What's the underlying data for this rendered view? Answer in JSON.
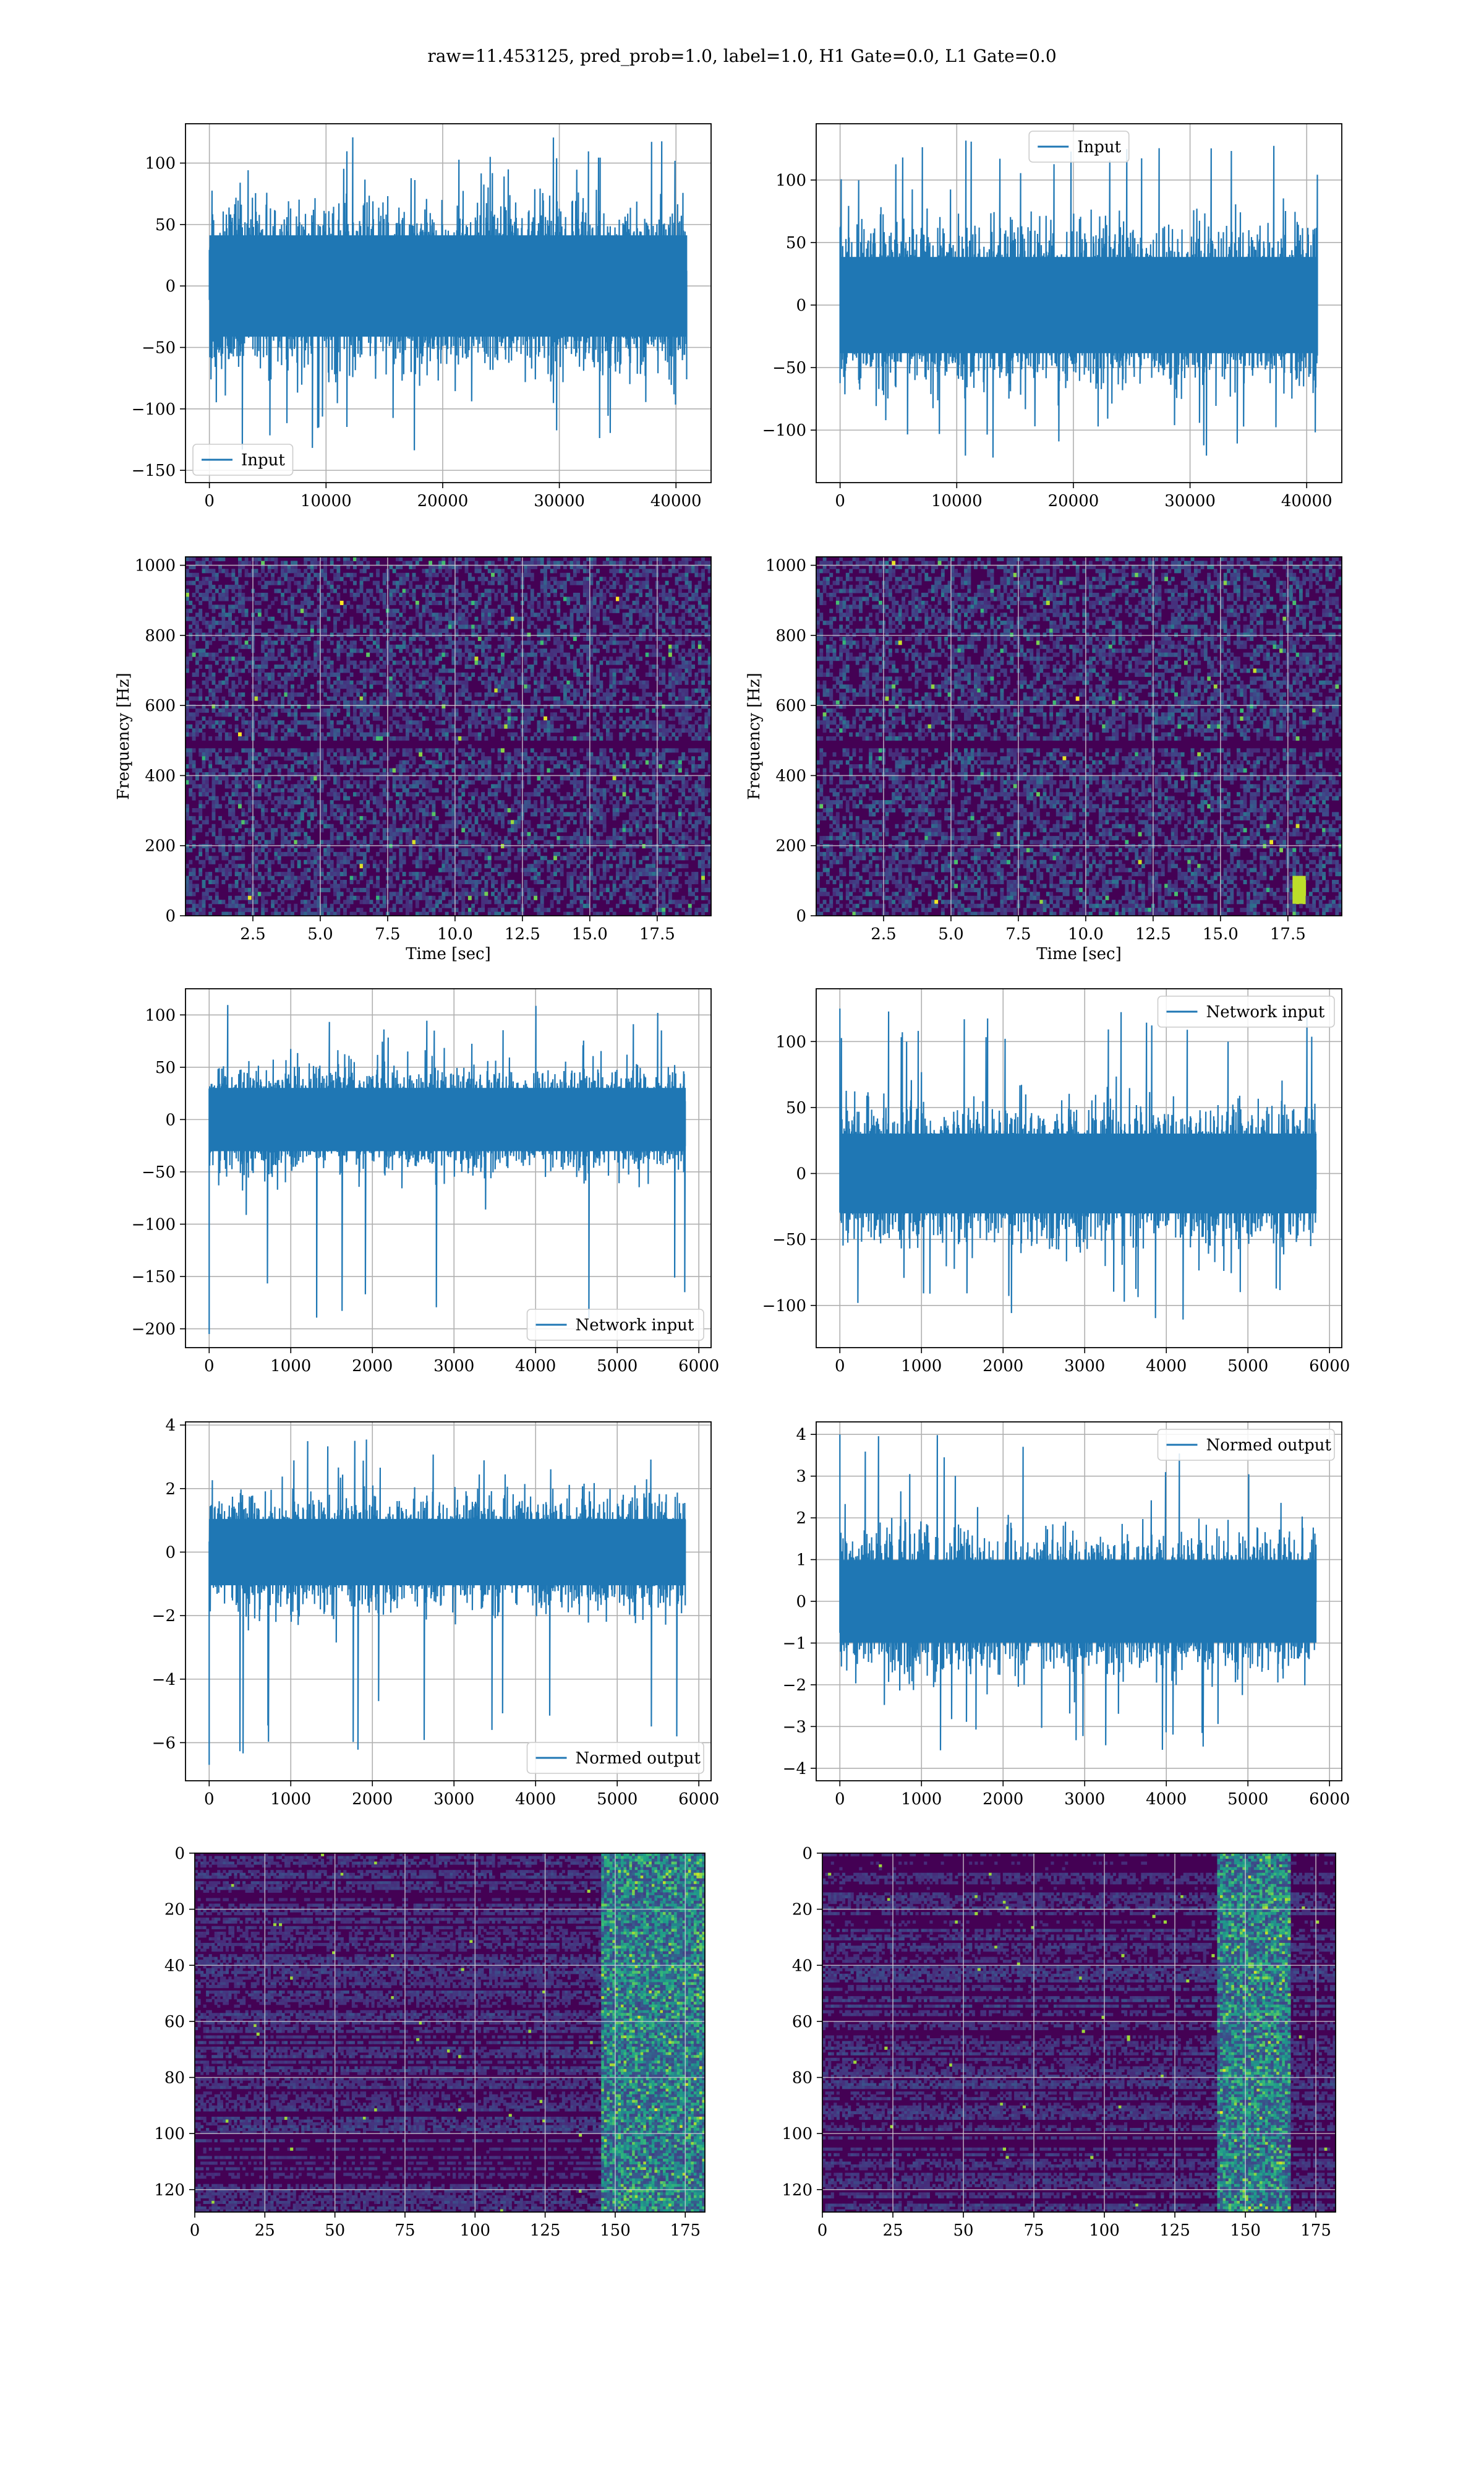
{
  "figure_title": "raw=11.453125, pred_prob=1.0, label=1.0, H1 Gate=0.0, L1 Gate=0.0",
  "colors": {
    "series": "#1f77b4",
    "grid": "#b0b0b0",
    "spectrogram_base": "#440154",
    "viridis": [
      "#440154",
      "#482878",
      "#3e4989",
      "#31688e",
      "#26828e",
      "#1f9e89",
      "#35b779",
      "#6ece58",
      "#b5de2b",
      "#fde725"
    ]
  },
  "chart_data": [
    {
      "id": "input-h1",
      "type": "line",
      "title": "",
      "xlabel": "",
      "ylabel": "",
      "xlim": [
        -2048,
        43008
      ],
      "ylim": [
        -160,
        132
      ],
      "xticks": [
        0,
        10000,
        20000,
        30000,
        40000
      ],
      "xticklabels": [
        "0",
        "10000",
        "20000",
        "30000",
        "40000"
      ],
      "yticks": [
        -150,
        -100,
        -50,
        0,
        50,
        100
      ],
      "yticklabels": [
        "−150",
        "−100",
        "−50",
        "0",
        "50",
        "100"
      ],
      "grid": true,
      "legend": {
        "position": "lower-left",
        "entries": [
          "Input"
        ]
      },
      "series": [
        {
          "name": "Input",
          "n": 40960,
          "typical_amplitude": 75,
          "min": -145,
          "max": 121
        }
      ]
    },
    {
      "id": "input-l1",
      "type": "line",
      "title": "",
      "xlabel": "",
      "ylabel": "",
      "xlim": [
        -2048,
        43008
      ],
      "ylim": [
        -142,
        145
      ],
      "xticks": [
        0,
        10000,
        20000,
        30000,
        40000
      ],
      "xticklabels": [
        "0",
        "10000",
        "20000",
        "30000",
        "40000"
      ],
      "yticks": [
        -100,
        -50,
        0,
        50,
        100
      ],
      "yticklabels": [
        "−100",
        "−50",
        "0",
        "50",
        "100"
      ],
      "grid": true,
      "legend": {
        "position": "upper-center",
        "entries": [
          "Input"
        ]
      },
      "series": [
        {
          "name": "Input",
          "n": 40960,
          "typical_amplitude": 70,
          "min": -130,
          "max": 132
        }
      ]
    },
    {
      "id": "spectrogram-h1",
      "type": "heatmap",
      "title": "",
      "xlabel": "Time [sec]",
      "ylabel": "Frequency [Hz]",
      "xlim": [
        0,
        19.5
      ],
      "ylim": [
        0,
        1024
      ],
      "xticks": [
        2.5,
        5,
        7.5,
        10,
        12.5,
        15,
        17.5
      ],
      "xticklabels": [
        "2.5",
        "5.0",
        "7.5",
        "10.0",
        "12.5",
        "15.0",
        "17.5"
      ],
      "yticks": [
        0,
        200,
        400,
        600,
        800,
        1000
      ],
      "yticklabels": [
        "0",
        "200",
        "400",
        "600",
        "800",
        "1000"
      ],
      "grid": true,
      "colormap": "viridis",
      "noise_level": "low-random",
      "dark_band_hz": 500
    },
    {
      "id": "spectrogram-l1",
      "type": "heatmap",
      "title": "",
      "xlabel": "Time [sec]",
      "ylabel": "Frequency [Hz]",
      "xlim": [
        0,
        19.5
      ],
      "ylim": [
        0,
        1024
      ],
      "xticks": [
        2.5,
        5,
        7.5,
        10,
        12.5,
        15,
        17.5
      ],
      "xticklabels": [
        "2.5",
        "5.0",
        "7.5",
        "10.0",
        "12.5",
        "15.0",
        "17.5"
      ],
      "yticks": [
        0,
        200,
        400,
        600,
        800,
        1000
      ],
      "yticklabels": [
        "0",
        "200",
        "400",
        "600",
        "800",
        "1000"
      ],
      "grid": true,
      "colormap": "viridis",
      "noise_level": "low-random",
      "dark_band_hz": 500,
      "bright_spot": {
        "t": 17.8,
        "f": 80
      }
    },
    {
      "id": "network-input-h1",
      "type": "line",
      "title": "",
      "xlabel": "",
      "ylabel": "",
      "xlim": [
        -290,
        6150
      ],
      "ylim": [
        -218,
        125
      ],
      "xticks": [
        0,
        1000,
        2000,
        3000,
        4000,
        5000,
        6000
      ],
      "xticklabels": [
        "0",
        "1000",
        "2000",
        "3000",
        "4000",
        "5000",
        "6000"
      ],
      "yticks": [
        -200,
        -150,
        -100,
        -50,
        0,
        50,
        100
      ],
      "yticklabels": [
        "−200",
        "−150",
        "−100",
        "−50",
        "0",
        "50",
        "100"
      ],
      "grid": true,
      "legend": {
        "position": "lower-right",
        "entries": [
          "Network input"
        ]
      },
      "series": [
        {
          "name": "Network input",
          "n": 5840,
          "typical_amplitude": 55,
          "min": -205,
          "max": 112,
          "spike_at_start": -205
        }
      ]
    },
    {
      "id": "network-input-l1",
      "type": "line",
      "title": "",
      "xlabel": "",
      "ylabel": "",
      "xlim": [
        -290,
        6150
      ],
      "ylim": [
        -132,
        140
      ],
      "xticks": [
        0,
        1000,
        2000,
        3000,
        4000,
        5000,
        6000
      ],
      "xticklabels": [
        "0",
        "1000",
        "2000",
        "3000",
        "4000",
        "5000",
        "6000"
      ],
      "yticks": [
        -100,
        -50,
        0,
        50,
        100
      ],
      "yticklabels": [
        "−100",
        "−50",
        "0",
        "50",
        "100"
      ],
      "grid": true,
      "legend": {
        "position": "upper-right",
        "entries": [
          "Network input"
        ]
      },
      "series": [
        {
          "name": "Network input",
          "n": 5840,
          "typical_amplitude": 55,
          "min": -118,
          "max": 125,
          "spike_at_start": 125
        }
      ]
    },
    {
      "id": "normed-output-h1",
      "type": "line",
      "title": "",
      "xlabel": "",
      "ylabel": "",
      "xlim": [
        -290,
        6150
      ],
      "ylim": [
        -7.2,
        4.1
      ],
      "xticks": [
        0,
        1000,
        2000,
        3000,
        4000,
        5000,
        6000
      ],
      "xticklabels": [
        "0",
        "1000",
        "2000",
        "3000",
        "4000",
        "5000",
        "6000"
      ],
      "yticks": [
        -6,
        -4,
        -2,
        0,
        2,
        4
      ],
      "yticklabels": [
        "−6",
        "−4",
        "−2",
        "0",
        "2",
        "4"
      ],
      "grid": true,
      "legend": {
        "position": "lower-right",
        "entries": [
          "Normed output"
        ]
      },
      "series": [
        {
          "name": "Normed output",
          "n": 5840,
          "typical_amplitude": 1.9,
          "min": -6.7,
          "max": 3.6,
          "spike_at_start": -6.7
        }
      ]
    },
    {
      "id": "normed-output-l1",
      "type": "line",
      "title": "",
      "xlabel": "",
      "ylabel": "",
      "xlim": [
        -290,
        6150
      ],
      "ylim": [
        -4.3,
        4.3
      ],
      "xticks": [
        0,
        1000,
        2000,
        3000,
        4000,
        5000,
        6000
      ],
      "xticklabels": [
        "0",
        "1000",
        "2000",
        "3000",
        "4000",
        "5000",
        "6000"
      ],
      "yticks": [
        -4,
        -3,
        -2,
        -1,
        0,
        1,
        2,
        3,
        4
      ],
      "yticklabels": [
        "−4",
        "−3",
        "−2",
        "−1",
        "0",
        "1",
        "2",
        "3",
        "4"
      ],
      "grid": true,
      "legend": {
        "position": "upper-right",
        "entries": [
          "Normed output"
        ]
      },
      "series": [
        {
          "name": "Normed output",
          "n": 5840,
          "typical_amplitude": 1.8,
          "min": -3.8,
          "max": 4.0,
          "spike_at_start": 4.0
        }
      ]
    },
    {
      "id": "features-h1",
      "type": "heatmap",
      "title": "",
      "xlabel": "",
      "ylabel": "",
      "xlim": [
        0,
        182
      ],
      "ylim": [
        128,
        0
      ],
      "xticks": [
        0,
        25,
        50,
        75,
        100,
        125,
        150,
        175
      ],
      "xticklabels": [
        "0",
        "25",
        "50",
        "75",
        "100",
        "125",
        "150",
        "175"
      ],
      "yticks": [
        0,
        20,
        40,
        60,
        80,
        100,
        120
      ],
      "yticklabels": [
        "0",
        "20",
        "40",
        "60",
        "80",
        "100",
        "120"
      ],
      "grid": true,
      "colormap": "viridis",
      "activity_region_x": [
        145,
        182
      ]
    },
    {
      "id": "features-l1",
      "type": "heatmap",
      "title": "",
      "xlabel": "",
      "ylabel": "",
      "xlim": [
        0,
        182
      ],
      "ylim": [
        128,
        0
      ],
      "xticks": [
        0,
        25,
        50,
        75,
        100,
        125,
        150,
        175
      ],
      "xticklabels": [
        "0",
        "25",
        "50",
        "75",
        "100",
        "125",
        "150",
        "175"
      ],
      "yticks": [
        0,
        20,
        40,
        60,
        80,
        100,
        120
      ],
      "yticklabels": [
        "0",
        "20",
        "40",
        "60",
        "80",
        "100",
        "120"
      ],
      "grid": true,
      "colormap": "viridis",
      "activity_region_x": [
        140,
        165
      ]
    }
  ]
}
